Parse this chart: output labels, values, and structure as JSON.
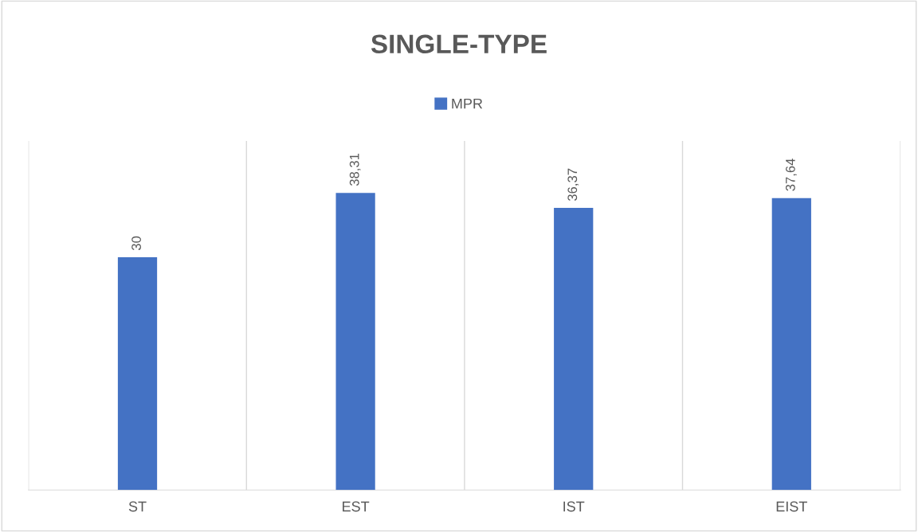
{
  "chart_data": {
    "type": "bar",
    "title": "SINGLE-TYPE",
    "categories": [
      "ST",
      "EST",
      "IST",
      "EIST"
    ],
    "series": [
      {
        "name": "MPR",
        "color": "#4472c4",
        "values": [
          30,
          38.31,
          36.37,
          37.64
        ],
        "value_labels": [
          "30",
          "38,31",
          "36,37",
          "37,64"
        ]
      }
    ],
    "ylim": [
      0,
      45
    ],
    "tick_labels": "x",
    "grid": "x",
    "legend": "top"
  }
}
